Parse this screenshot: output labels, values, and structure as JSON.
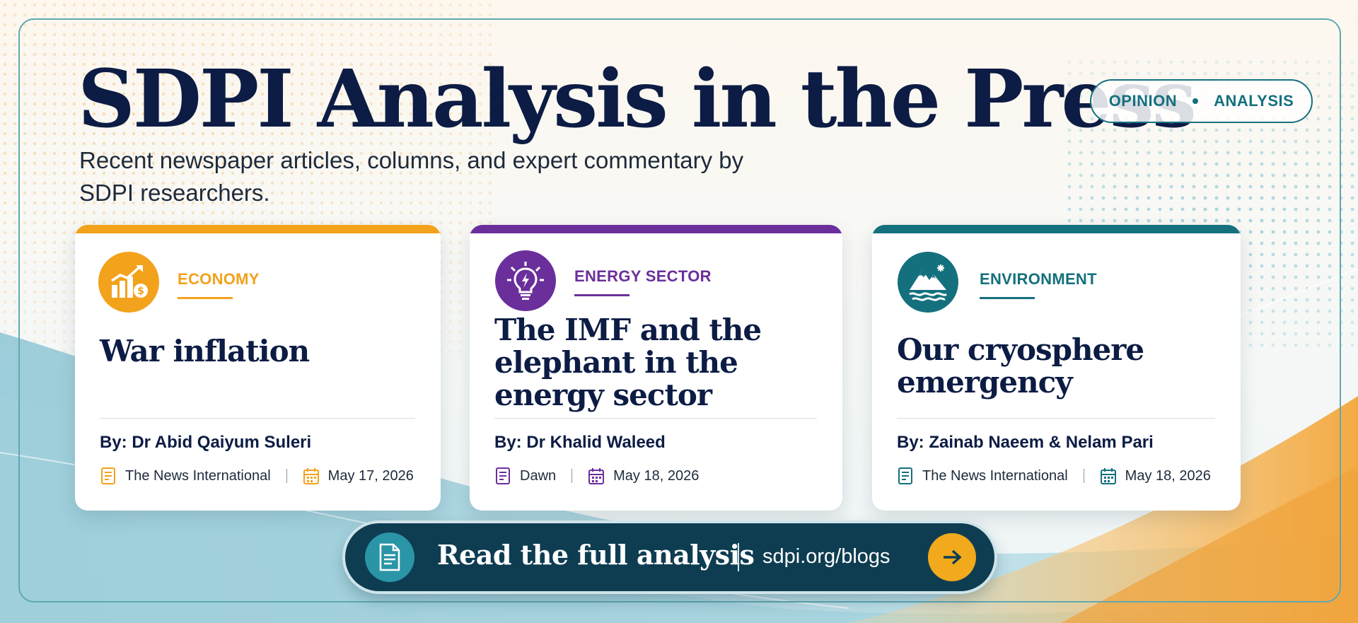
{
  "header": {
    "title": "SDPI Analysis in the Press",
    "subtitle": "Recent newspaper articles, columns, and expert commentary by SDPI researchers.",
    "tags": [
      "OPINION",
      "ANALYSIS"
    ]
  },
  "colors": {
    "economy": "#f2a21b",
    "energy": "#6b2f9c",
    "environment": "#15707e",
    "title": "#0c1c44",
    "cta_bg": "#0e3d52",
    "cta_button": "#f2a91b"
  },
  "cards": [
    {
      "category": "ECONOMY",
      "icon": "growth-chart-icon",
      "headline": "War inflation",
      "byline": "By: Dr Abid Qaiyum Suleri",
      "publication": "The News International",
      "date": "May 17, 2026"
    },
    {
      "category": "ENERGY SECTOR",
      "icon": "lightbulb-icon",
      "headline": "The IMF and the elephant in the energy sector",
      "byline": "By: Dr Khalid Waleed",
      "publication": "Dawn",
      "date": "May 18, 2026"
    },
    {
      "category": "ENVIRONMENT",
      "icon": "mountain-icon",
      "headline": "Our cryosphere emergency",
      "byline": "By: Zainab Naeem & Nelam Pari",
      "publication": "The News International",
      "date": "May 18, 2026"
    }
  ],
  "cta": {
    "label": "Read the full analysis",
    "url": "sdpi.org/blogs",
    "icon": "document-icon",
    "button_icon": "arrow-right-icon"
  }
}
